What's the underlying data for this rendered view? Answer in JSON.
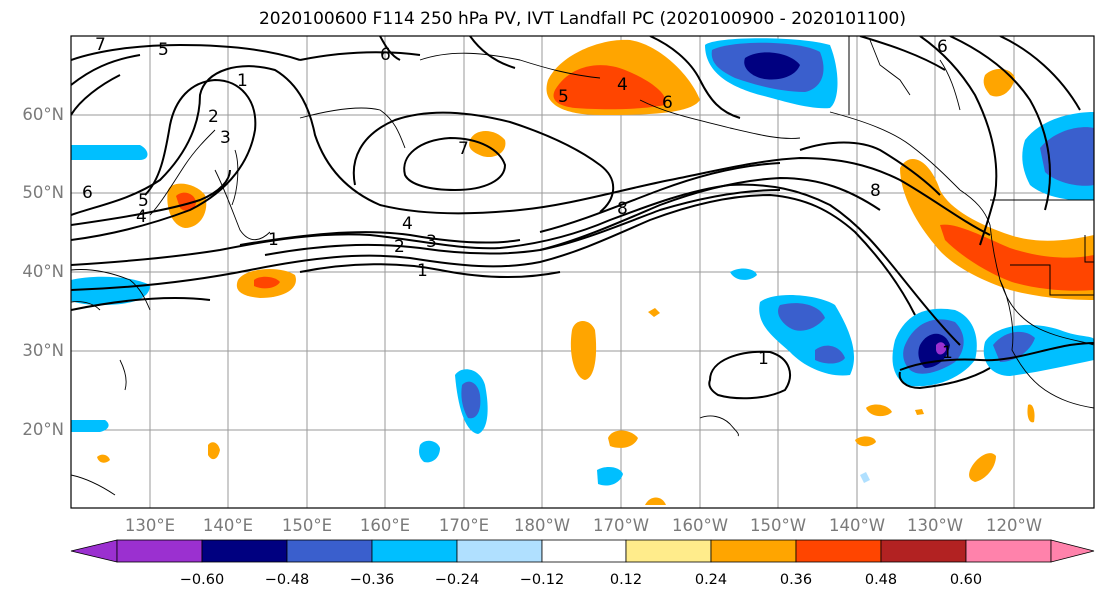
{
  "title": "2020100600 F114 250 hPa PV, IVT Landfall PC (2020100900 - 2020101100)",
  "map": {
    "lat_labels": [
      "60°N",
      "50°N",
      "40°N",
      "30°N",
      "20°N"
    ],
    "lon_labels": [
      "130°E",
      "140°E",
      "150°E",
      "160°E",
      "170°E",
      "180°W",
      "170°W",
      "160°W",
      "150°W",
      "140°W",
      "130°W",
      "120°W"
    ],
    "contour_labels": [
      "1",
      "2",
      "3",
      "4",
      "5",
      "6",
      "7",
      "8",
      "1",
      "1",
      "1",
      "6",
      "5",
      "4",
      "2",
      "3",
      "1",
      "4",
      "5",
      "6",
      "7",
      "8",
      "6"
    ]
  },
  "colorbar": {
    "ticks": [
      "−0.60",
      "−0.48",
      "−0.36",
      "−0.24",
      "−0.12",
      "0.12",
      "0.24",
      "0.36",
      "0.48",
      "0.60"
    ],
    "colors": [
      "#9b30d0",
      "#000080",
      "#3a5fcd",
      "#00bfff",
      "#b0e0ff",
      "#ffffff",
      "#ffec8b",
      "#ffa500",
      "#ff4500",
      "#b22222",
      "#ff82ab"
    ]
  }
}
